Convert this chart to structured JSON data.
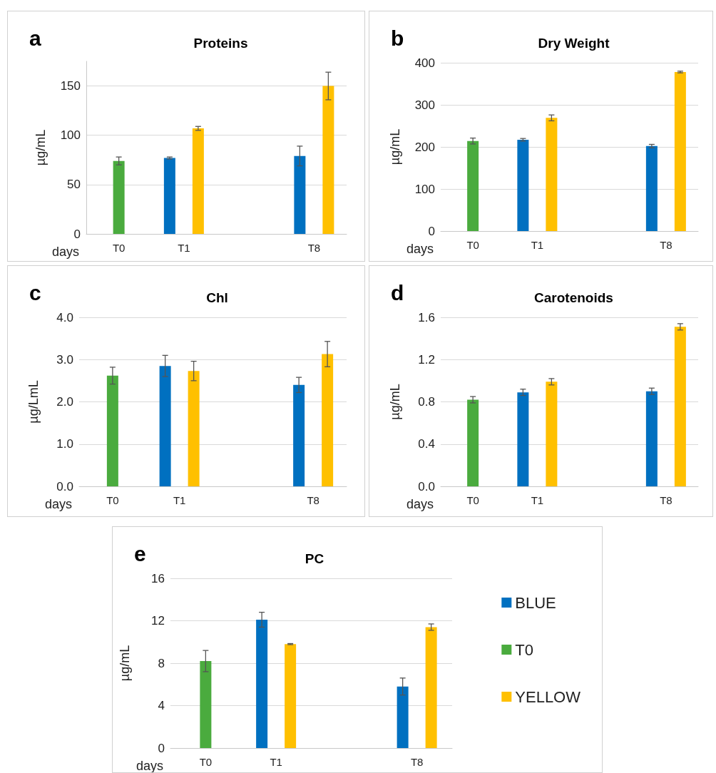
{
  "chart_data": [
    {
      "type": "bar",
      "title": "Proteins",
      "xlabel": "days",
      "ylabel": "µg/mL",
      "annotations": [
        "a"
      ],
      "categories": [
        "T0",
        "T1",
        null,
        "T8"
      ],
      "series": [
        {
          "color": "#0070c0",
          "values": [
            null,
            77,
            null,
            79
          ],
          "errors": [
            null,
            1,
            null,
            10
          ]
        },
        {
          "color": "#4aab3e",
          "values": [
            74,
            null,
            null,
            null
          ],
          "errors": [
            4,
            null,
            null,
            null
          ]
        },
        {
          "color": "#ffc000",
          "values": [
            null,
            107,
            null,
            150
          ],
          "errors": [
            null,
            2,
            null,
            14
          ]
        }
      ],
      "ylim": [
        0,
        175
      ],
      "yticks": [
        0,
        50,
        100,
        150
      ],
      "grid": "y"
    },
    {
      "type": "bar",
      "title": "Dry Weight",
      "xlabel": "days",
      "ylabel": "µg/mL",
      "annotations": [
        "b"
      ],
      "categories": [
        "T0",
        "T1",
        null,
        "T8"
      ],
      "series": [
        {
          "color": "#0070c0",
          "values": [
            null,
            217,
            null,
            202
          ],
          "errors": [
            null,
            3,
            null,
            4
          ]
        },
        {
          "color": "#4aab3e",
          "values": [
            214,
            null,
            null,
            null
          ],
          "errors": [
            7,
            null,
            null,
            null
          ]
        },
        {
          "color": "#ffc000",
          "values": [
            null,
            269,
            null,
            378
          ],
          "errors": [
            null,
            7,
            null,
            2
          ]
        }
      ],
      "ylim": [
        0,
        400
      ],
      "yticks": [
        0,
        100,
        200,
        300,
        400
      ],
      "grid": "y"
    },
    {
      "type": "bar",
      "title": "Chl",
      "xlabel": "days",
      "ylabel": "µg/LmL",
      "annotations": [
        "c"
      ],
      "categories": [
        "T0",
        "T1",
        null,
        "T8"
      ],
      "series": [
        {
          "color": "#0070c0",
          "values": [
            null,
            2.85,
            null,
            2.4
          ],
          "errors": [
            null,
            0.25,
            null,
            0.18
          ]
        },
        {
          "color": "#4aab3e",
          "values": [
            2.62,
            null,
            null,
            null
          ],
          "errors": [
            0.2,
            null,
            null,
            null
          ]
        },
        {
          "color": "#ffc000",
          "values": [
            null,
            2.73,
            null,
            3.13
          ],
          "errors": [
            null,
            0.23,
            null,
            0.3
          ]
        }
      ],
      "ylim": [
        0,
        4
      ],
      "yticks": [
        {
          "value": 0,
          "label": "0.0"
        },
        {
          "value": 1,
          "label": "1.0"
        },
        {
          "value": 2,
          "label": "2.0"
        },
        {
          "value": 3,
          "label": "3.0"
        },
        {
          "value": 4,
          "label": "4.0"
        }
      ],
      "grid": "y"
    },
    {
      "type": "bar",
      "title": "Carotenoids",
      "xlabel": "days",
      "ylabel": "µg/mL",
      "annotations": [
        "d"
      ],
      "categories": [
        "T0",
        "T1",
        null,
        "T8"
      ],
      "series": [
        {
          "color": "#0070c0",
          "values": [
            null,
            0.89,
            null,
            0.9
          ],
          "errors": [
            null,
            0.03,
            null,
            0.03
          ]
        },
        {
          "color": "#4aab3e",
          "values": [
            0.82,
            null,
            null,
            null
          ],
          "errors": [
            0.03,
            null,
            null,
            null
          ]
        },
        {
          "color": "#ffc000",
          "values": [
            null,
            0.99,
            null,
            1.51
          ],
          "errors": [
            null,
            0.03,
            null,
            0.03
          ]
        }
      ],
      "ylim": [
        0,
        1.6
      ],
      "yticks": [
        {
          "value": 0,
          "label": "0.0"
        },
        0.4,
        0.8,
        1.2,
        1.6
      ],
      "grid": "y"
    },
    {
      "type": "bar",
      "title": "PC",
      "xlabel": "days",
      "ylabel": "µg/mL",
      "annotations": [
        "e"
      ],
      "categories": [
        "T0",
        "T1",
        null,
        "T8"
      ],
      "series": [
        {
          "name": "BLUE",
          "color": "#0070c0",
          "values": [
            null,
            12.1,
            null,
            5.8
          ],
          "errors": [
            null,
            0.7,
            null,
            0.8
          ]
        },
        {
          "name": "T0",
          "color": "#4aab3e",
          "values": [
            8.2,
            null,
            null,
            null
          ],
          "errors": [
            1,
            null,
            null,
            null
          ]
        },
        {
          "name": "YELLOW",
          "color": "#ffc000",
          "values": [
            null,
            9.8,
            null,
            11.4
          ],
          "errors": [
            null,
            0.05,
            null,
            0.3
          ]
        }
      ],
      "ylim": [
        0,
        16
      ],
      "yticks": [
        0,
        4,
        8,
        12,
        16
      ],
      "grid": "y",
      "legend": "right"
    }
  ]
}
